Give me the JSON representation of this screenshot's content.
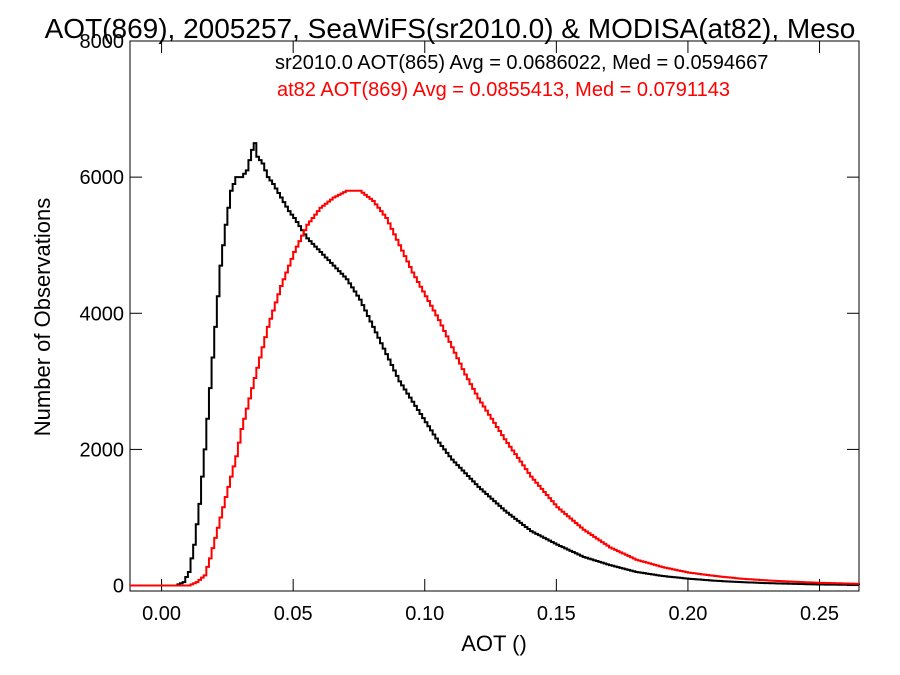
{
  "chart_data": {
    "type": "line",
    "title": "AOT(869), 2005257, SeaWiFS(sr2010.0) & MODISA(at82), Meso",
    "xlabel": "AOT ()",
    "ylabel": "Number of Observations",
    "xlim": [
      -0.012,
      0.265
    ],
    "ylim": [
      -80,
      8000
    ],
    "x_ticks": [
      0.0,
      0.05,
      0.1,
      0.15,
      0.2,
      0.25
    ],
    "x_tick_labels": [
      "0.00",
      "0.05",
      "0.10",
      "0.15",
      "0.20",
      "0.25"
    ],
    "y_ticks": [
      0,
      2000,
      4000,
      6000,
      8000
    ],
    "y_tick_labels": [
      "0",
      "2000",
      "4000",
      "6000",
      "8000"
    ],
    "grid": false,
    "legend_position": "top-right",
    "series": [
      {
        "name": "sr2010.0 AOT(865) Avg = 0.0686022, Med = 0.0594667",
        "color": "#000000",
        "x": [
          -0.012,
          0.0,
          0.005,
          0.008,
          0.01,
          0.012,
          0.014,
          0.016,
          0.018,
          0.02,
          0.022,
          0.024,
          0.026,
          0.028,
          0.03,
          0.032,
          0.034,
          0.035,
          0.036,
          0.038,
          0.04,
          0.042,
          0.045,
          0.048,
          0.05,
          0.055,
          0.06,
          0.065,
          0.07,
          0.075,
          0.08,
          0.085,
          0.09,
          0.095,
          0.1,
          0.105,
          0.11,
          0.115,
          0.12,
          0.13,
          0.14,
          0.15,
          0.16,
          0.17,
          0.18,
          0.19,
          0.2,
          0.21,
          0.22,
          0.23,
          0.24,
          0.25,
          0.265
        ],
        "values": [
          0,
          0,
          0,
          50,
          200,
          600,
          1200,
          2000,
          2900,
          3800,
          4700,
          5300,
          5800,
          6000,
          6000,
          6100,
          6400,
          6500,
          6300,
          6200,
          6000,
          5900,
          5700,
          5500,
          5400,
          5100,
          4900,
          4700,
          4500,
          4200,
          3800,
          3400,
          3000,
          2700,
          2400,
          2100,
          1850,
          1650,
          1450,
          1100,
          800,
          600,
          420,
          300,
          200,
          140,
          100,
          70,
          50,
          35,
          25,
          15,
          10
        ]
      },
      {
        "name": "at82 AOT(869) Avg = 0.0855413, Med = 0.0791143",
        "color": "#ff0000",
        "x": [
          -0.012,
          0.01,
          0.013,
          0.016,
          0.018,
          0.02,
          0.022,
          0.024,
          0.026,
          0.028,
          0.03,
          0.032,
          0.034,
          0.036,
          0.038,
          0.04,
          0.045,
          0.05,
          0.055,
          0.06,
          0.065,
          0.07,
          0.075,
          0.08,
          0.085,
          0.09,
          0.095,
          0.1,
          0.105,
          0.11,
          0.115,
          0.12,
          0.125,
          0.13,
          0.14,
          0.15,
          0.16,
          0.17,
          0.18,
          0.19,
          0.2,
          0.21,
          0.22,
          0.23,
          0.24,
          0.25,
          0.265
        ],
        "values": [
          0,
          0,
          50,
          150,
          400,
          700,
          1000,
          1300,
          1600,
          1900,
          2300,
          2600,
          2900,
          3200,
          3500,
          3800,
          4400,
          4900,
          5300,
          5550,
          5700,
          5800,
          5800,
          5650,
          5400,
          5000,
          4600,
          4250,
          3900,
          3500,
          3100,
          2750,
          2450,
          2150,
          1600,
          1150,
          820,
          560,
          380,
          270,
          190,
          140,
          100,
          75,
          55,
          40,
          25
        ]
      }
    ]
  }
}
